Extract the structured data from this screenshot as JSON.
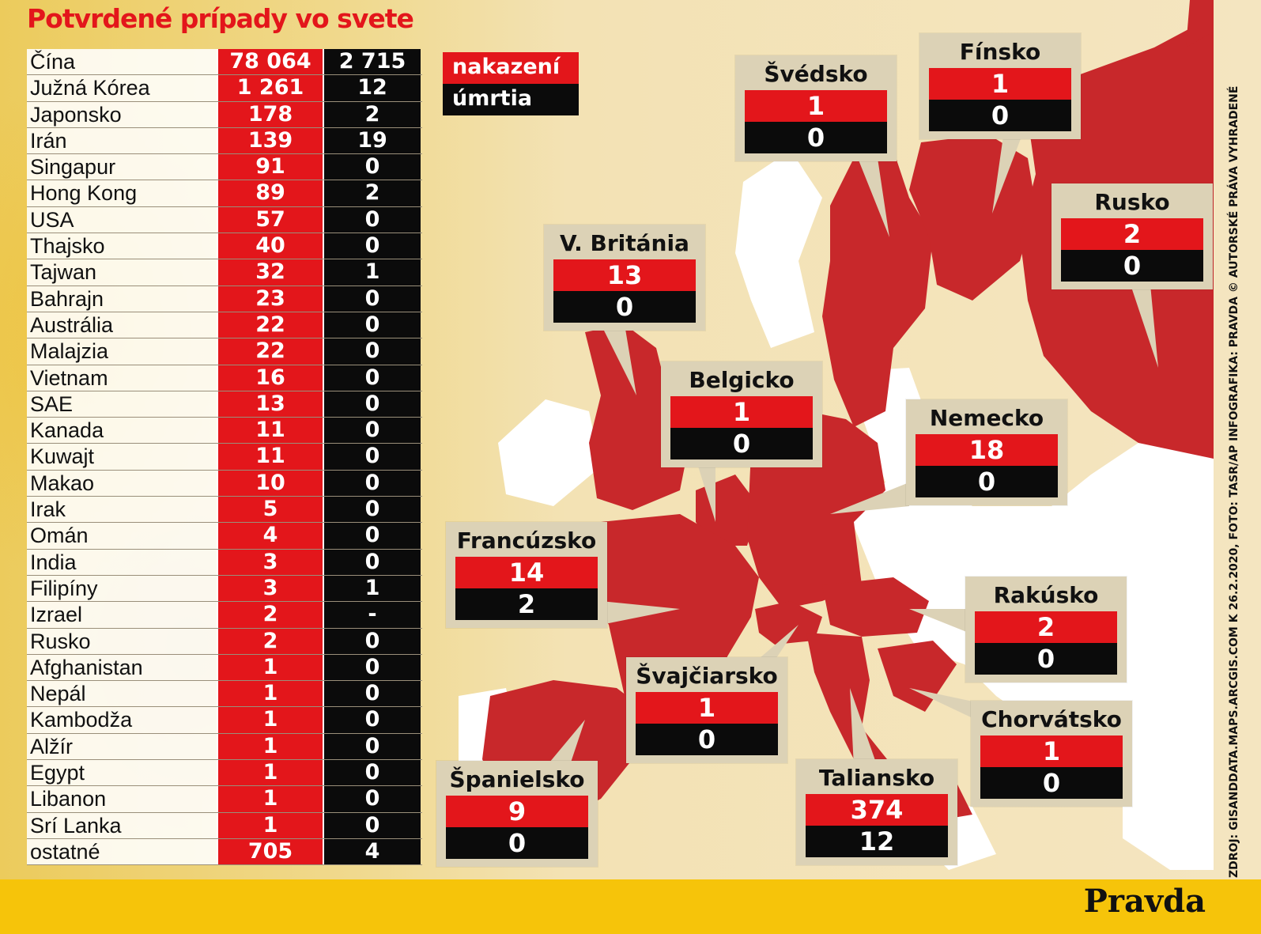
{
  "title": "Potvrdené prípady vo svete",
  "legend": {
    "infected": "nakazení",
    "deaths": "úmrtia"
  },
  "table": [
    {
      "country": "Čína",
      "infected": "78 064",
      "deaths": "2 715"
    },
    {
      "country": "Južná Kórea",
      "infected": "1 261",
      "deaths": "12"
    },
    {
      "country": "Japonsko",
      "infected": "178",
      "deaths": "2"
    },
    {
      "country": "Irán",
      "infected": "139",
      "deaths": "19"
    },
    {
      "country": "Singapur",
      "infected": "91",
      "deaths": "0"
    },
    {
      "country": "Hong Kong",
      "infected": "89",
      "deaths": "2"
    },
    {
      "country": "USA",
      "infected": "57",
      "deaths": "0"
    },
    {
      "country": "Thajsko",
      "infected": "40",
      "deaths": "0"
    },
    {
      "country": "Tajwan",
      "infected": "32",
      "deaths": "1"
    },
    {
      "country": "Bahrajn",
      "infected": "23",
      "deaths": "0"
    },
    {
      "country": "Austrália",
      "infected": "22",
      "deaths": "0"
    },
    {
      "country": "Malajzia",
      "infected": "22",
      "deaths": "0"
    },
    {
      "country": "Vietnam",
      "infected": "16",
      "deaths": "0"
    },
    {
      "country": "SAE",
      "infected": "13",
      "deaths": "0"
    },
    {
      "country": "Kanada",
      "infected": "11",
      "deaths": "0"
    },
    {
      "country": "Kuwajt",
      "infected": "11",
      "deaths": "0"
    },
    {
      "country": "Makao",
      "infected": "10",
      "deaths": "0"
    },
    {
      "country": "Irak",
      "infected": "5",
      "deaths": "0"
    },
    {
      "country": "Omán",
      "infected": "4",
      "deaths": "0"
    },
    {
      "country": "India",
      "infected": "3",
      "deaths": "0"
    },
    {
      "country": "Filipíny",
      "infected": "3",
      "deaths": "1"
    },
    {
      "country": "Izrael",
      "infected": "2",
      "deaths": "-"
    },
    {
      "country": "Rusko",
      "infected": "2",
      "deaths": "0"
    },
    {
      "country": "Afghanistan",
      "infected": "1",
      "deaths": "0"
    },
    {
      "country": "Nepál",
      "infected": "1",
      "deaths": "0"
    },
    {
      "country": "Kambodža",
      "infected": "1",
      "deaths": "0"
    },
    {
      "country": "Alžír",
      "infected": "1",
      "deaths": "0"
    },
    {
      "country": "Egypt",
      "infected": "1",
      "deaths": "0"
    },
    {
      "country": "Libanon",
      "infected": "1",
      "deaths": "0"
    },
    {
      "country": "Srí Lanka",
      "infected": "1",
      "deaths": "0"
    },
    {
      "country": "ostatné",
      "infected": "705",
      "deaths": "4"
    }
  ],
  "map_boxes": {
    "svedsko": {
      "name": "Švédsko",
      "infected": "1",
      "deaths": "0"
    },
    "finsko": {
      "name": "Fínsko",
      "infected": "1",
      "deaths": "0"
    },
    "rusko": {
      "name": "Rusko",
      "infected": "2",
      "deaths": "0"
    },
    "britania": {
      "name": "V. Británia",
      "infected": "13",
      "deaths": "0"
    },
    "belgicko": {
      "name": "Belgicko",
      "infected": "1",
      "deaths": "0"
    },
    "nemecko": {
      "name": "Nemecko",
      "infected": "18",
      "deaths": "0"
    },
    "francuzsko": {
      "name": "Francúzsko",
      "infected": "14",
      "deaths": "2"
    },
    "rakusko": {
      "name": "Rakúsko",
      "infected": "2",
      "deaths": "0"
    },
    "svajciarsko": {
      "name": "Švajčiarsko",
      "infected": "1",
      "deaths": "0"
    },
    "chorvatsko": {
      "name": "Chorvátsko",
      "infected": "1",
      "deaths": "0"
    },
    "spanielsko": {
      "name": "Španielsko",
      "infected": "9",
      "deaths": "0"
    },
    "taliansko": {
      "name": "Taliansko",
      "infected": "374",
      "deaths": "12"
    }
  },
  "credits": "ZDROJ: GISANDDATA.MAPS.ARCGIS.COM K 26.2.2020, FOTO: TASR/AP INFOGRAFIKA: PRAVDA © AUTORSKÉ PRÁVA VYHRADENÉ",
  "logo": "Pravda",
  "colors": {
    "red": "#e3161b",
    "black": "#0b0b0b",
    "map_red": "#c8282b",
    "footer": "#f6c40a"
  }
}
